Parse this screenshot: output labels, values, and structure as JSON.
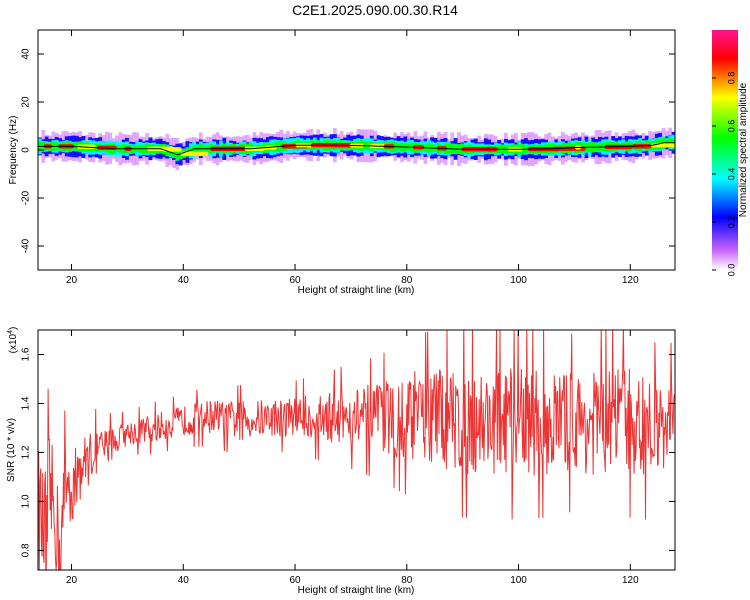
{
  "title": "C2E1.2025.090.00.30.R14",
  "chart_data": [
    {
      "type": "heatmap",
      "xlabel": "Height of straight line (km)",
      "ylabel": "Frequency (Hz)",
      "xlim": [
        14,
        128
      ],
      "ylim": [
        -50,
        50
      ],
      "x_ticks": [
        20,
        40,
        60,
        80,
        100,
        120
      ],
      "y_ticks": [
        -40,
        -20,
        0,
        20,
        40
      ],
      "x_tick_labels": [
        "20",
        "40",
        "60",
        "80",
        "100",
        "120"
      ],
      "y_tick_labels": [
        "-40",
        "-20",
        "0",
        "20",
        "40"
      ],
      "line_x": [
        14,
        20,
        28,
        36,
        39,
        42,
        52,
        60,
        66,
        72,
        80,
        90,
        100,
        106,
        110,
        120,
        124,
        126,
        128
      ],
      "line_y": [
        1.5,
        1.5,
        0.5,
        0.5,
        -2.0,
        0.5,
        0.5,
        2.0,
        2.0,
        1.8,
        1.2,
        0.3,
        0.3,
        0.5,
        1.0,
        1.5,
        2.0,
        3.0,
        3.0
      ],
      "colorbar": {
        "label": "Normalized spectral amplitude",
        "range": [
          0.0,
          1.0
        ],
        "ticks": [
          0.0,
          0.2,
          0.4,
          0.6,
          0.8
        ],
        "tick_labels": [
          "0.0",
          "0.2",
          "0.4",
          "0.6",
          "0.8"
        ],
        "colors": [
          "#ffffff",
          "#cc66ff",
          "#0000ff",
          "#00ffff",
          "#00ff00",
          "#ffff00",
          "#ff0000",
          "#ff1493"
        ]
      }
    },
    {
      "type": "line",
      "xlabel": "Height of straight line (km)",
      "ylabel": "SNR (10 * v/v)",
      "y_multiplier": "(x10",
      "y_multiplier_exp": "4",
      "y_multiplier_close": ")",
      "xlim": [
        14,
        128
      ],
      "ylim": [
        0.72,
        1.7
      ],
      "x_ticks": [
        20,
        40,
        60,
        80,
        100,
        120
      ],
      "y_ticks": [
        0.8,
        1.0,
        1.2,
        1.4,
        1.6
      ],
      "x_tick_labels": [
        "20",
        "40",
        "60",
        "80",
        "100",
        "120"
      ],
      "y_tick_labels": [
        "0.8",
        "1.0",
        "1.2",
        "1.4",
        "1.6"
      ],
      "color": "#ee3333",
      "x": [
        14,
        15,
        16,
        17,
        18,
        19,
        20,
        22,
        24,
        26,
        28,
        30,
        35,
        40,
        45,
        50,
        55,
        60,
        65,
        70,
        75,
        80,
        85,
        90,
        95,
        100,
        105,
        110,
        115,
        120,
        125,
        128
      ],
      "y": [
        1.0,
        0.85,
        1.05,
        0.95,
        0.8,
        1.1,
        1.05,
        1.15,
        1.2,
        1.22,
        1.25,
        1.28,
        1.3,
        1.33,
        1.35,
        1.33,
        1.34,
        1.35,
        1.34,
        1.35,
        1.34,
        1.35,
        1.34,
        1.33,
        1.33,
        1.32,
        1.33,
        1.32,
        1.32,
        1.33,
        1.28,
        1.38
      ],
      "spread": [
        0.25,
        0.25,
        0.25,
        0.22,
        0.2,
        0.18,
        0.15,
        0.12,
        0.1,
        0.08,
        0.06,
        0.05,
        0.06,
        0.06,
        0.07,
        0.08,
        0.08,
        0.08,
        0.1,
        0.12,
        0.14,
        0.18,
        0.2,
        0.22,
        0.22,
        0.22,
        0.22,
        0.2,
        0.22,
        0.22,
        0.2,
        0.15
      ]
    }
  ]
}
